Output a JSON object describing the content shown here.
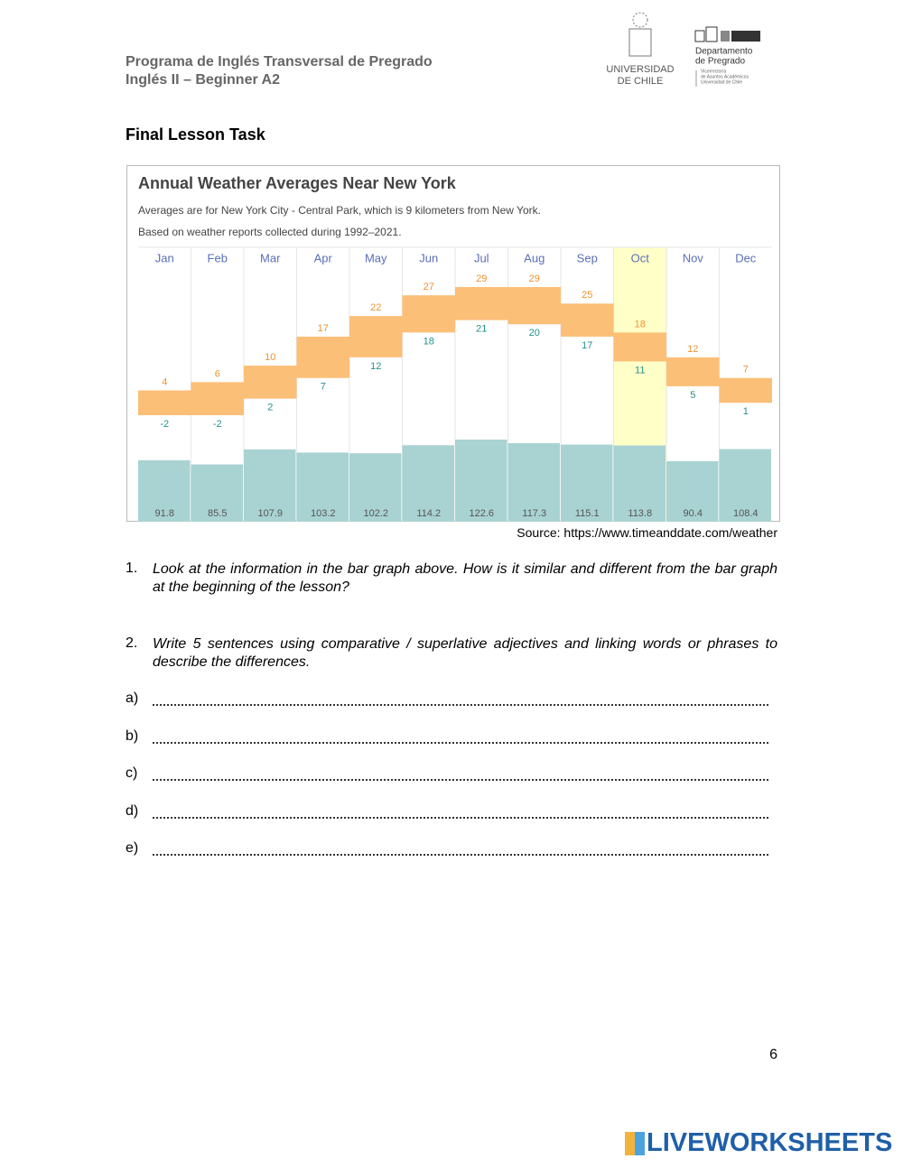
{
  "header": {
    "program": "Programa de Inglés Transversal de Pregrado",
    "course": "Inglés II – Beginner A2",
    "logo_university": [
      "UNIVERSIDAD",
      "DE CHILE"
    ],
    "logo_department": [
      "Departamento",
      "de Pregrado"
    ],
    "logo_sub": [
      "Vicerrectoría",
      "de Asuntos Académicos",
      "Universidad de Chile"
    ]
  },
  "task_title": "Final Lesson Task",
  "chart_data": {
    "type": "range-bar",
    "title": "Annual Weather Averages Near New York",
    "subtitles": [
      "Averages are for New York City - Central Park, which is 9 kilometers from New York.",
      "Based on weather reports collected during 1992–2021."
    ],
    "categories": [
      "Jan",
      "Feb",
      "Mar",
      "Apr",
      "May",
      "Jun",
      "Jul",
      "Aug",
      "Sep",
      "Oct",
      "Nov",
      "Dec"
    ],
    "highlight_index": 9,
    "highlight_color": "#ffffc8",
    "series": [
      {
        "name": "high",
        "color": "#fcbf78",
        "label_color": "#f0922e",
        "values": [
          4,
          6,
          10,
          17,
          22,
          27,
          29,
          29,
          25,
          18,
          12,
          7
        ]
      },
      {
        "name": "low",
        "color": "#fcbf78",
        "label_color": "#22918c",
        "values": [
          -2,
          -2,
          2,
          7,
          12,
          18,
          21,
          20,
          17,
          11,
          5,
          1
        ]
      },
      {
        "name": "precipitation",
        "color": "#a9d3d2",
        "label_color": "#555555",
        "values": [
          91.8,
          85.5,
          107.9,
          103.2,
          102.2,
          114.2,
          122.6,
          117.3,
          115.1,
          113.8,
          90.4,
          108.4
        ]
      }
    ]
  },
  "source": "Source: https://www.timeanddate.com/weather",
  "questions": [
    {
      "number": "1.",
      "text": "Look at the information in the bar graph above. How is it similar and different from the bar graph at the beginning of the lesson?"
    },
    {
      "number": "2.",
      "text": "Write 5 sentences using comparative / superlative adjectives and linking words or phrases to describe the differences."
    }
  ],
  "answers": [
    "a)",
    "b)",
    "c)",
    "d)",
    "e)"
  ],
  "page_number": "6",
  "footer": "LIVEWORKSHEETS"
}
